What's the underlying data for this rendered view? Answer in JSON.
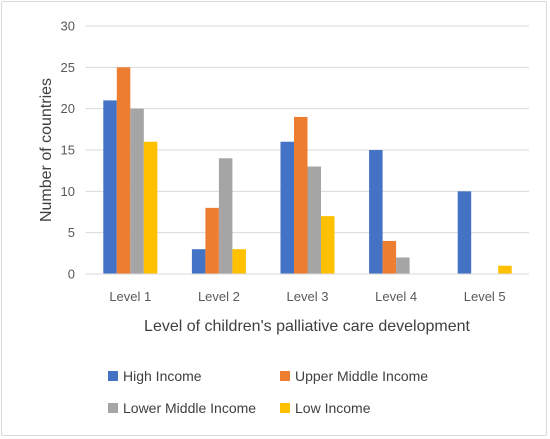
{
  "chart_data": {
    "type": "bar",
    "title": "",
    "xlabel": "Level of children's palliative care development",
    "ylabel": "Number of countries",
    "ylim": [
      0,
      30
    ],
    "yticks": [
      0,
      5,
      10,
      15,
      20,
      25,
      30
    ],
    "grid": true,
    "legend_position": "bottom",
    "categories": [
      "Level 1",
      "Level 2",
      "Level 3",
      "Level 4",
      "Level 5"
    ],
    "series": [
      {
        "name": "High Income",
        "color": "#4472c4",
        "values": [
          21,
          3,
          16,
          15,
          10
        ]
      },
      {
        "name": "Upper Middle Income",
        "color": "#ed7d31",
        "values": [
          25,
          8,
          19,
          4,
          0
        ]
      },
      {
        "name": "Lower Middle Income",
        "color": "#a5a5a5",
        "values": [
          20,
          14,
          13,
          2,
          0
        ]
      },
      {
        "name": "Low Income",
        "color": "#ffc000",
        "values": [
          16,
          3,
          7,
          0,
          1
        ]
      }
    ]
  }
}
